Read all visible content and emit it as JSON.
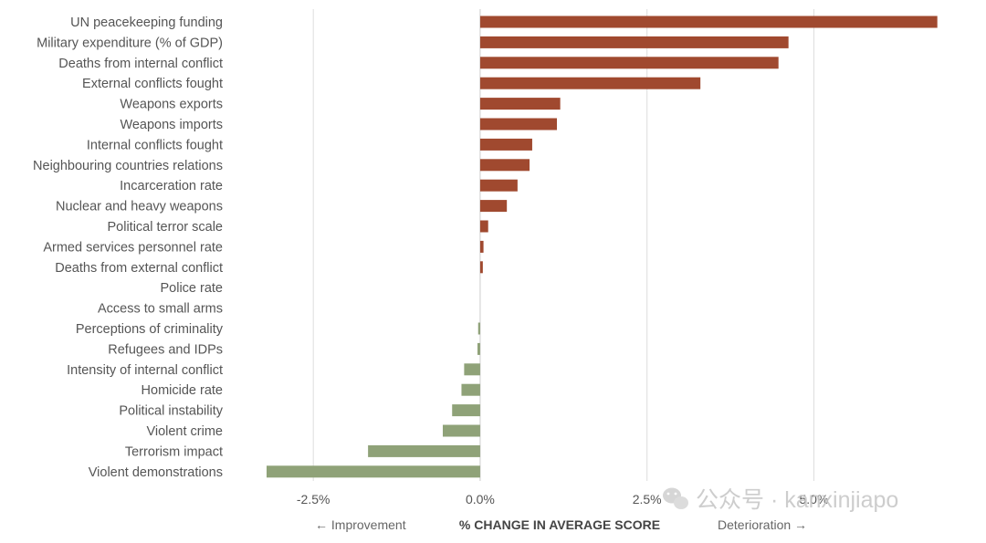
{
  "chart_data": {
    "type": "bar",
    "orientation": "horizontal",
    "categories": [
      "UN peacekeeping funding",
      "Military expenditure (% of GDP)",
      "Deaths from internal conflict",
      "External conflicts fought",
      "Weapons exports",
      "Weapons imports",
      "Internal conflicts fought",
      "Neighbouring countries relations",
      "Incarceration rate",
      "Nuclear and heavy weapons",
      "Political terror scale",
      "Armed services personnel rate",
      "Deaths from external conflict",
      "Police rate",
      "Access to small arms",
      "Perceptions of criminality",
      "Refugees and IDPs",
      "Intensity of internal conflict",
      "Homicide rate",
      "Political instability",
      "Violent crime",
      "Terrorism impact",
      "Violent demonstrations"
    ],
    "values": [
      6.85,
      4.62,
      4.47,
      3.3,
      1.2,
      1.15,
      0.78,
      0.74,
      0.56,
      0.4,
      0.12,
      0.05,
      0.04,
      0.0,
      0.0,
      -0.03,
      -0.04,
      -0.24,
      -0.28,
      -0.42,
      -0.56,
      -1.68,
      -3.2
    ],
    "xlim": [
      -3.2,
      6.95
    ],
    "ticks": [
      -2.5,
      0.0,
      2.5,
      5.0
    ],
    "tick_labels": [
      "-2.5%",
      "0.0%",
      "2.5%",
      "5.0%"
    ],
    "xlabel": "% CHANGE IN AVERAGE SCORE",
    "left_direction_label": "← Improvement",
    "right_direction_label": "Deterioration →",
    "grid": true,
    "colors": {
      "positive": "#a0492f",
      "negative": "#8fa278",
      "gridline": "#dddddd",
      "zeroline": "#cccccc"
    }
  },
  "watermark": {
    "text": "公众号 · kanxinjiapo",
    "icon": "wechat-icon"
  }
}
